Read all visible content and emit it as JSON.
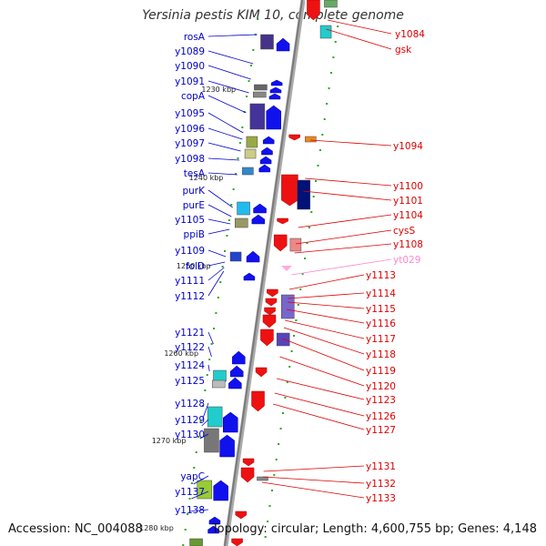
{
  "title": "Yersinia pestis KIM 10, complete genome",
  "accession": "Accession: NC_004088",
  "topology": "Topology: circular; Length: 4,600,755 bp; Genes: 4,148",
  "scale_labels": [
    "1230 kbp",
    "1240 kbp",
    "1250 kbp",
    "1260 kbp",
    "1270 kbp",
    "1280 kbp"
  ],
  "colors": {
    "forward_label": "#0000cc",
    "reverse_label": "#dd0000",
    "rna_label": "#ff88cc",
    "backbone": "#888888",
    "tick": "#22aa22"
  },
  "left_labels": [
    "rosA",
    "y1089",
    "y1090",
    "y1091",
    "copA",
    "y1095",
    "y1096",
    "y1097",
    "y1098",
    "tesA",
    "purK",
    "purE",
    "y1105",
    "ppiB",
    "y1109",
    "folD",
    "y1111",
    "y1112",
    "y1121",
    "y1122",
    "y1124",
    "y1125",
    "y1128",
    "y1129",
    "y1130",
    "yapC",
    "y1137",
    "y1138"
  ],
  "right_labels": [
    "y1084",
    "gsk",
    "y1094",
    "y1100",
    "y1101",
    "y1104",
    "cysS",
    "y1108",
    "yt029",
    "y1113",
    "y1114",
    "y1115",
    "y1116",
    "y1117",
    "y1118",
    "y1119",
    "y1120",
    "y1123",
    "y1126",
    "y1127",
    "y1131",
    "y1132",
    "y1133"
  ]
}
